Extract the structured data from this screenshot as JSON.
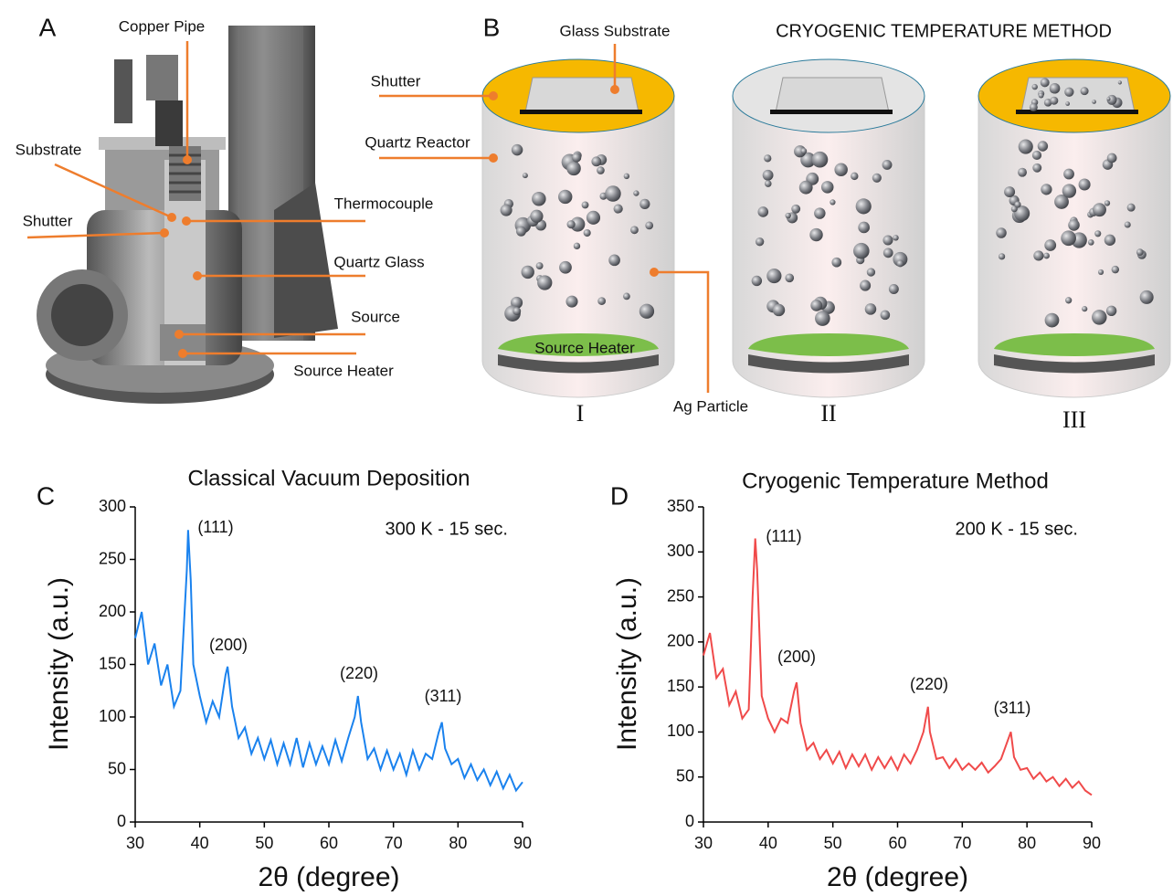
{
  "panels": [
    "A",
    "B",
    "C",
    "D"
  ],
  "diagram": {
    "a": {
      "labels": [
        "Copper Pipe",
        "Substrate",
        "Shutter",
        "Thermocouple",
        "Quartz Glass",
        "Source",
        "Source Heater"
      ]
    },
    "b": {
      "labels": [
        "Glass Substrate",
        "CRYOGENIC TEMPERATURE METHOD",
        "Shutter",
        "Quartz Reactor",
        "Source Heater",
        "Ag Particle"
      ],
      "stages": [
        "I",
        "II",
        "III"
      ]
    }
  },
  "chart_data": [
    {
      "type": "line",
      "title": "Classical Vacuum Deposition",
      "xlabel": "2θ (degree)",
      "ylabel": "Intensity (a.u.)",
      "note": "300 K - 15 sec.",
      "annotations": [
        "(111)",
        "(200)",
        "(220)",
        "(311)"
      ],
      "color": "#1a82ee",
      "x": [
        30,
        31,
        32,
        33,
        34,
        35,
        36,
        37,
        38,
        38.2,
        38.6,
        39,
        40,
        41,
        42,
        43,
        44,
        44.3,
        45,
        46,
        47,
        48,
        49,
        50,
        51,
        52,
        53,
        54,
        55,
        56,
        57,
        58,
        59,
        60,
        61,
        62,
        63,
        64,
        64.5,
        65,
        66,
        67,
        68,
        69,
        70,
        71,
        72,
        73,
        74,
        75,
        76,
        77,
        77.5,
        78,
        79,
        80,
        81,
        82,
        83,
        84,
        85,
        86,
        87,
        88,
        89,
        90
      ],
      "values": [
        175,
        200,
        150,
        170,
        130,
        150,
        110,
        125,
        240,
        278,
        230,
        150,
        120,
        95,
        115,
        100,
        140,
        148,
        110,
        80,
        90,
        65,
        80,
        60,
        78,
        55,
        75,
        55,
        80,
        52,
        75,
        55,
        72,
        55,
        78,
        58,
        80,
        100,
        120,
        95,
        60,
        70,
        50,
        68,
        50,
        65,
        45,
        68,
        50,
        65,
        60,
        85,
        95,
        70,
        55,
        60,
        42,
        55,
        40,
        50,
        35,
        48,
        32,
        45,
        30,
        38
      ],
      "xlim": [
        30,
        90
      ],
      "xticks": [
        30,
        40,
        50,
        60,
        70,
        80,
        90
      ],
      "ylim": [
        0,
        300
      ],
      "yticks": [
        0,
        50,
        100,
        150,
        200,
        250,
        300
      ]
    },
    {
      "type": "line",
      "title": "Cryogenic Temperature Method",
      "xlabel": "2θ (degree)",
      "ylabel": "Intensity (a.u.)",
      "note": "200 K - 15 sec.",
      "annotations": [
        "(111)",
        "(200)",
        "(220)",
        "(311)"
      ],
      "color": "#f04a4a",
      "x": [
        30,
        31,
        32,
        33,
        34,
        35,
        36,
        37,
        37.6,
        38,
        38.3,
        39,
        40,
        41,
        42,
        43,
        44,
        44.4,
        45,
        46,
        47,
        48,
        49,
        50,
        51,
        52,
        53,
        54,
        55,
        56,
        57,
        58,
        59,
        60,
        61,
        62,
        63,
        64,
        64.7,
        65,
        66,
        67,
        68,
        69,
        70,
        71,
        72,
        73,
        74,
        75,
        76,
        77,
        77.5,
        78,
        79,
        80,
        81,
        82,
        83,
        84,
        85,
        86,
        87,
        88,
        89,
        90
      ],
      "values": [
        185,
        210,
        160,
        170,
        130,
        145,
        115,
        125,
        250,
        315,
        280,
        140,
        115,
        100,
        115,
        110,
        145,
        155,
        110,
        80,
        88,
        70,
        80,
        65,
        78,
        60,
        75,
        62,
        75,
        58,
        72,
        60,
        72,
        58,
        75,
        65,
        80,
        100,
        128,
        100,
        70,
        72,
        60,
        70,
        58,
        65,
        58,
        66,
        55,
        62,
        70,
        90,
        100,
        72,
        58,
        60,
        48,
        55,
        45,
        50,
        40,
        48,
        38,
        45,
        35,
        30
      ],
      "xlim": [
        30,
        90
      ],
      "xticks": [
        30,
        40,
        50,
        60,
        70,
        80,
        90
      ],
      "ylim": [
        0,
        350
      ],
      "yticks": [
        0,
        50,
        100,
        150,
        200,
        250,
        300,
        350
      ]
    }
  ]
}
